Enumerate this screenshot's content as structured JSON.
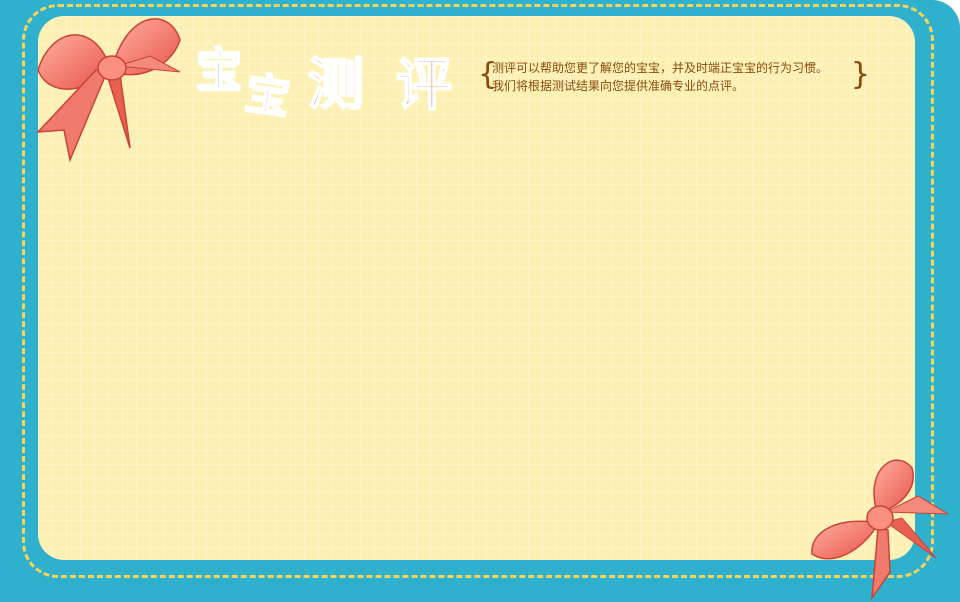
{
  "title": {
    "char1": "宝",
    "char2": "宝",
    "char3": "测",
    "char4": "评"
  },
  "description": {
    "line1": "测评可以帮助您更了解您的宝宝，并及时端正宝宝的行为习惯。",
    "line2": "我们将根据测试结果向您提供准确专业的点评。"
  },
  "colors": {
    "frame": "#2fb0cc",
    "panel": "#fdf0b4",
    "dash": "#f6d35a",
    "title_green": "#21b39a",
    "title_pink": "#f0577c",
    "title_orange": "#cc6b1f",
    "bow": "#f4796e"
  },
  "icons": {
    "top_left": "ribbon-bow-icon",
    "bottom_right": "ribbon-bow-icon"
  }
}
